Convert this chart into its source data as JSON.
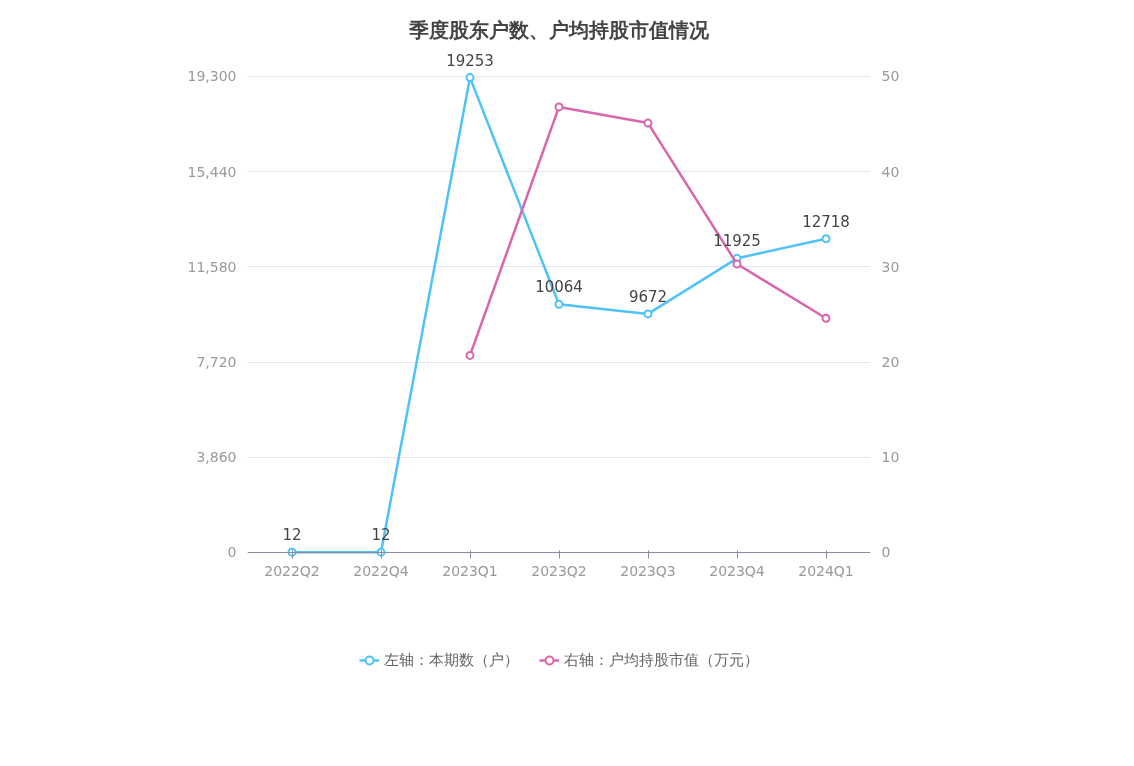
{
  "chart_data": {
    "type": "line",
    "title": "季度股东户数、户均持股市值情况",
    "categories": [
      "2022Q2",
      "2022Q4",
      "2023Q1",
      "2023Q2",
      "2023Q3",
      "2023Q4",
      "2024Q1"
    ],
    "series": [
      {
        "name": "左轴：本期数（户）",
        "color": "#4fc3f7",
        "values": [
          12,
          12,
          19253,
          10064,
          9672,
          11925,
          12718
        ],
        "value_labels": [
          "12",
          "12",
          "19253",
          "10064",
          "9672",
          "11925",
          "12718"
        ]
      },
      {
        "name": "右轴：户均持股市值（万元）",
        "color": "#d966ac",
        "axis": "y2",
        "values": [
          null,
          null,
          20.7,
          46.8,
          45.1,
          30.3,
          24.6
        ]
      }
    ],
    "ylim": [
      0,
      19300
    ],
    "yticks": [
      0,
      {
        "value": 3860,
        "label": "3,860"
      },
      {
        "value": 7720,
        "label": "7,720"
      },
      {
        "value": 11580,
        "label": "11,580"
      },
      {
        "value": 15440,
        "label": "15,440"
      },
      {
        "value": 19300,
        "label": "19,300"
      }
    ],
    "y2lim": [
      0,
      50
    ],
    "y2ticks": [
      0,
      10,
      20,
      30,
      40,
      50
    ],
    "grid": "y",
    "legend": "bottom",
    "marker": "circle",
    "line_style": "solid"
  }
}
